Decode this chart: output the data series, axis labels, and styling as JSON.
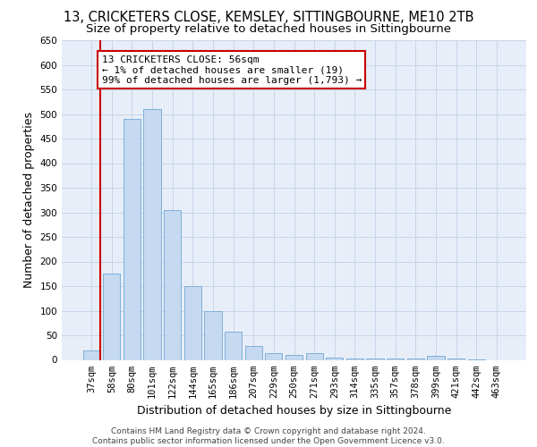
{
  "title_line1": "13, CRICKETERS CLOSE, KEMSLEY, SITTINGBOURNE, ME10 2TB",
  "title_line2": "Size of property relative to detached houses in Sittingbourne",
  "xlabel": "Distribution of detached houses by size in Sittingbourne",
  "ylabel": "Number of detached properties",
  "categories": [
    "37sqm",
    "58sqm",
    "80sqm",
    "101sqm",
    "122sqm",
    "144sqm",
    "165sqm",
    "186sqm",
    "207sqm",
    "229sqm",
    "250sqm",
    "271sqm",
    "293sqm",
    "314sqm",
    "335sqm",
    "357sqm",
    "378sqm",
    "399sqm",
    "421sqm",
    "442sqm",
    "463sqm"
  ],
  "values": [
    20,
    175,
    490,
    510,
    305,
    150,
    100,
    58,
    28,
    14,
    10,
    14,
    5,
    3,
    2,
    2,
    2,
    9,
    2,
    1,
    0
  ],
  "bar_color": "#c5d9f1",
  "bar_edge_color": "#7fb0d8",
  "annotation_text": "13 CRICKETERS CLOSE: 56sqm\n← 1% of detached houses are smaller (19)\n99% of detached houses are larger (1,793) →",
  "annotation_box_color": "#ffffff",
  "annotation_box_edge_color": "#cc0000",
  "ylim": [
    0,
    650
  ],
  "yticks": [
    0,
    50,
    100,
    150,
    200,
    250,
    300,
    350,
    400,
    450,
    500,
    550,
    600,
    650
  ],
  "background_color": "#ffffff",
  "plot_bg_color": "#e8eef8",
  "grid_color": "#c8d4e8",
  "footer_text": "Contains HM Land Registry data © Crown copyright and database right 2024.\nContains public sector information licensed under the Open Government Licence v3.0.",
  "title_fontsize": 10.5,
  "subtitle_fontsize": 9.5,
  "axis_label_fontsize": 9,
  "tick_fontsize": 7.5,
  "annotation_fontsize": 8,
  "footer_fontsize": 6.5,
  "red_line_x": 0.45
}
